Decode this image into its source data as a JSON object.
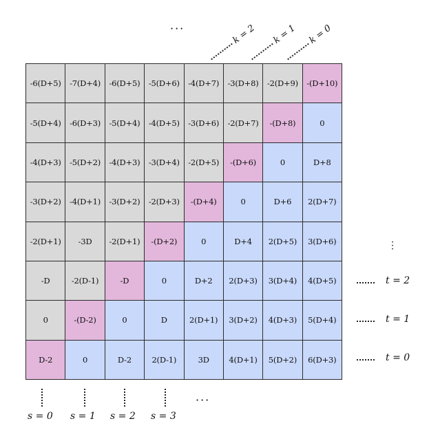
{
  "grid": {
    "rows": [
      [
        {
          "t": "-6(D+5)",
          "c": "gray"
        },
        {
          "t": "-7(D+4)",
          "c": "gray"
        },
        {
          "t": "-6(D+5)",
          "c": "gray"
        },
        {
          "t": "-5(D+6)",
          "c": "gray"
        },
        {
          "t": "-4(D+7)",
          "c": "gray"
        },
        {
          "t": "-3(D+8)",
          "c": "gray"
        },
        {
          "t": "-2(D+9)",
          "c": "gray"
        },
        {
          "t": "-(D+10)",
          "c": "pink"
        }
      ],
      [
        {
          "t": "-5(D+4)",
          "c": "gray"
        },
        {
          "t": "-6(D+3)",
          "c": "gray"
        },
        {
          "t": "-5(D+4)",
          "c": "gray"
        },
        {
          "t": "-4(D+5)",
          "c": "gray"
        },
        {
          "t": "-3(D+6)",
          "c": "gray"
        },
        {
          "t": "-2(D+7)",
          "c": "gray"
        },
        {
          "t": "-(D+8)",
          "c": "pink"
        },
        {
          "t": "0",
          "c": "blue"
        }
      ],
      [
        {
          "t": "-4(D+3)",
          "c": "gray"
        },
        {
          "t": "-5(D+2)",
          "c": "gray"
        },
        {
          "t": "-4(D+3)",
          "c": "gray"
        },
        {
          "t": "-3(D+4)",
          "c": "gray"
        },
        {
          "t": "-2(D+5)",
          "c": "gray"
        },
        {
          "t": "-(D+6)",
          "c": "pink"
        },
        {
          "t": "0",
          "c": "blue"
        },
        {
          "t": "D+8",
          "c": "blue"
        }
      ],
      [
        {
          "t": "-3(D+2)",
          "c": "gray"
        },
        {
          "t": "-4(D+1)",
          "c": "gray"
        },
        {
          "t": "-3(D+2)",
          "c": "gray"
        },
        {
          "t": "-2(D+3)",
          "c": "gray"
        },
        {
          "t": "-(D+4)",
          "c": "pink"
        },
        {
          "t": "0",
          "c": "blue"
        },
        {
          "t": "D+6",
          "c": "blue"
        },
        {
          "t": "2(D+7)",
          "c": "blue"
        }
      ],
      [
        {
          "t": "-2(D+1)",
          "c": "gray"
        },
        {
          "t": "-3D",
          "c": "gray"
        },
        {
          "t": "-2(D+1)",
          "c": "gray"
        },
        {
          "t": "-(D+2)",
          "c": "pink"
        },
        {
          "t": "0",
          "c": "blue"
        },
        {
          "t": "D+4",
          "c": "blue"
        },
        {
          "t": "2(D+5)",
          "c": "blue"
        },
        {
          "t": "3(D+6)",
          "c": "blue"
        }
      ],
      [
        {
          "t": "-D",
          "c": "gray"
        },
        {
          "t": "-2(D-1)",
          "c": "gray"
        },
        {
          "t": "-D",
          "c": "pink"
        },
        {
          "t": "0",
          "c": "blue"
        },
        {
          "t": "D+2",
          "c": "blue"
        },
        {
          "t": "2(D+3)",
          "c": "blue"
        },
        {
          "t": "3(D+4)",
          "c": "blue"
        },
        {
          "t": "4(D+5)",
          "c": "blue"
        }
      ],
      [
        {
          "t": "0",
          "c": "gray"
        },
        {
          "t": "-(D-2)",
          "c": "pink"
        },
        {
          "t": "0",
          "c": "blue"
        },
        {
          "t": "D",
          "c": "blue"
        },
        {
          "t": "2(D+1)",
          "c": "blue"
        },
        {
          "t": "3(D+2)",
          "c": "blue"
        },
        {
          "t": "4(D+3)",
          "c": "blue"
        },
        {
          "t": "5(D+4)",
          "c": "blue"
        }
      ],
      [
        {
          "t": "D-2",
          "c": "pink"
        },
        {
          "t": "0",
          "c": "blue"
        },
        {
          "t": "D-2",
          "c": "blue"
        },
        {
          "t": "2(D-1)",
          "c": "blue"
        },
        {
          "t": "3D",
          "c": "blue"
        },
        {
          "t": "4(D+1)",
          "c": "blue"
        },
        {
          "t": "5(D+2)",
          "c": "blue"
        },
        {
          "t": "6(D+3)",
          "c": "blue"
        }
      ]
    ]
  },
  "colors": {
    "gray": "#d9d9d9",
    "pink": "#e3b7dc",
    "blue": "#c9d9fb"
  },
  "labels": {
    "k": [
      "k = 2",
      "k = 1",
      "k = 0"
    ],
    "t": [
      "t = 2",
      "t = 1",
      "t = 0"
    ],
    "s": [
      "s = 0",
      "s = 1",
      "s = 2",
      "s = 3"
    ],
    "ellipsis": "···",
    "vellipsis": "⋮"
  }
}
